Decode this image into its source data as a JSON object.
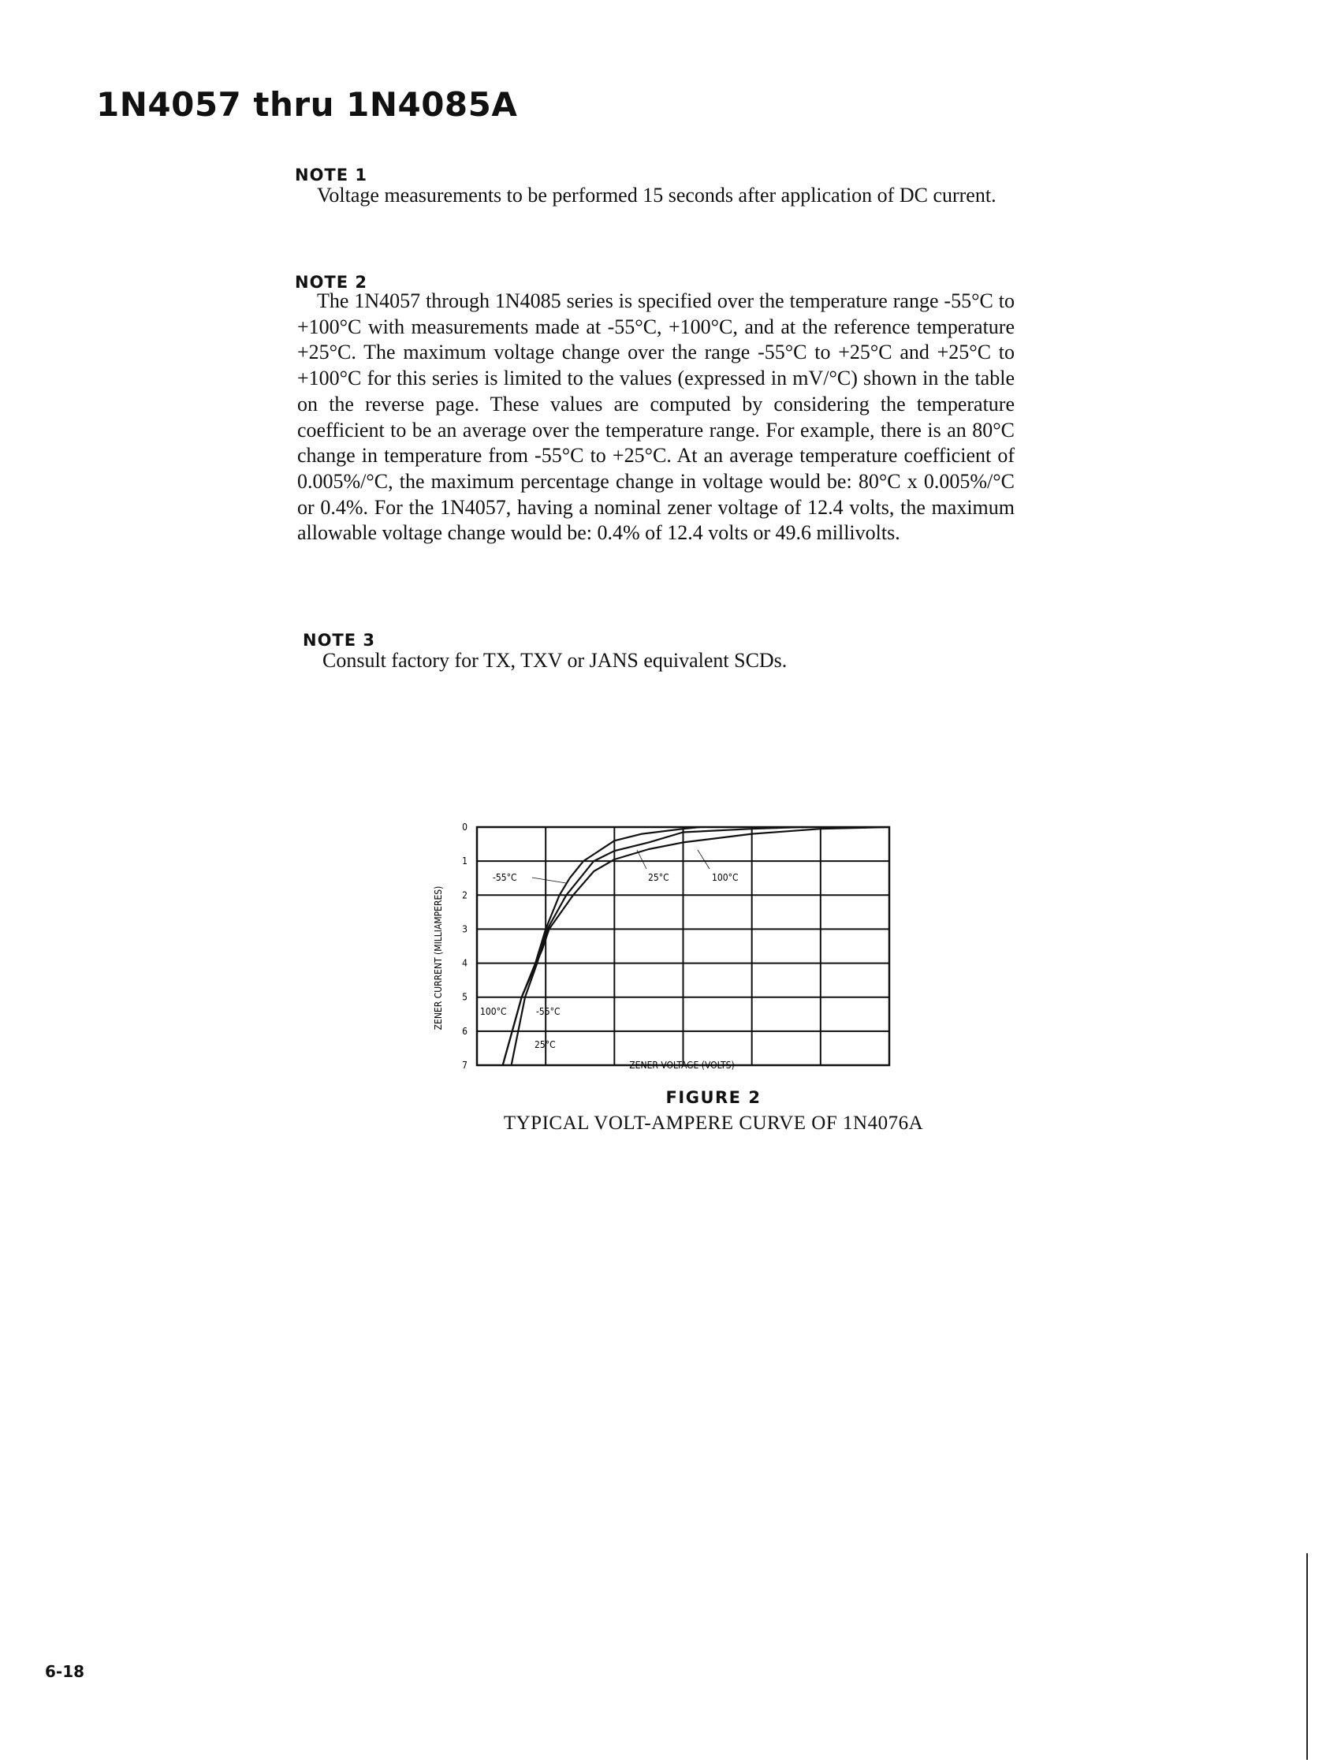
{
  "header": {
    "title": "1N4057 thru 1N4085A"
  },
  "notes": [
    {
      "heading": "NOTE 1",
      "text": "Voltage measurements to be performed 15 seconds after application of DC current."
    },
    {
      "heading": "NOTE 2",
      "text": "The 1N4057 through 1N4085 series is specified over the temperature range -55°C to +100°C with measurements made at -55°C, +100°C, and at the reference temperature +25°C. The maximum voltage change over the range -55°C to +25°C and +25°C to +100°C for this series is limited to the values (expressed in mV/°C) shown in the table on the reverse page. These values are computed by considering the temperature coefficient to be an average over the temperature range. For example, there is an 80°C change in temperature from -55°C to +25°C. At an average temperature coefficient of 0.005%/°C, the maximum percentage change in voltage would be: 80°C x 0.005%/°C or 0.4%. For the 1N4057, having a nominal zener voltage of 12.4 volts, the maximum allowable voltage change would be: 0.4% of 12.4 volts or 49.6 millivolts."
    },
    {
      "heading": "NOTE 3",
      "text": "Consult factory for TX, TXV or JANS equivalent SCDs."
    }
  ],
  "figure": {
    "title": "FIGURE 2",
    "caption": "TYPICAL VOLT-AMPERE CURVE OF 1N4076A"
  },
  "page_number": "6-18",
  "chart_data": {
    "type": "line",
    "xlabel": "ZENER VOLTAGE (VOLTS)",
    "ylabel": "ZENER CURRENT (MILLIAMPERES)",
    "xlim": [
      92,
      80
    ],
    "ylim": [
      0,
      7
    ],
    "x_reversed": true,
    "y_inverted": true,
    "grid": true,
    "xticks": [
      "92",
      "90",
      "88",
      "86",
      "84",
      "82",
      "80"
    ],
    "xtick_values": [
      92,
      90,
      88,
      86,
      84,
      82,
      80
    ],
    "yticks": [
      "0",
      "1",
      "2",
      "3",
      "4",
      "5",
      "6",
      "7"
    ],
    "series": [
      {
        "name": "-55°C",
        "points": [
          [
            91.25,
            7
          ],
          [
            90.7,
            5
          ],
          [
            90.3,
            4
          ],
          [
            90.0,
            3
          ],
          [
            89.6,
            2
          ],
          [
            89.3,
            1.5
          ],
          [
            88.9,
            1
          ],
          [
            88.6,
            0.8
          ],
          [
            88.0,
            0.4
          ],
          [
            87.2,
            0.2
          ],
          [
            86.0,
            0.05
          ],
          [
            85.5,
            0
          ]
        ]
      },
      {
        "name": "25°C",
        "points": [
          [
            91.0,
            7
          ],
          [
            90.6,
            5
          ],
          [
            90.25,
            4
          ],
          [
            89.95,
            3
          ],
          [
            89.4,
            2
          ],
          [
            89.0,
            1.5
          ],
          [
            88.6,
            1
          ],
          [
            88.0,
            0.7
          ],
          [
            87.0,
            0.45
          ],
          [
            86.0,
            0.15
          ],
          [
            84.0,
            0.05
          ],
          [
            82.5,
            0
          ]
        ]
      },
      {
        "name": "100°C",
        "points": [
          [
            91.25,
            7
          ],
          [
            90.7,
            5
          ],
          [
            90.1,
            3.6
          ],
          [
            89.9,
            3
          ],
          [
            89.2,
            2
          ],
          [
            88.6,
            1.3
          ],
          [
            88.0,
            0.95
          ],
          [
            87.0,
            0.65
          ],
          [
            86.0,
            0.45
          ],
          [
            84.0,
            0.2
          ],
          [
            82.0,
            0.05
          ],
          [
            80.0,
            0
          ]
        ]
      }
    ],
    "annotations": [
      "-55°C",
      "25°C",
      "100°C",
      "100°C",
      "-55°C",
      "25°C"
    ]
  }
}
